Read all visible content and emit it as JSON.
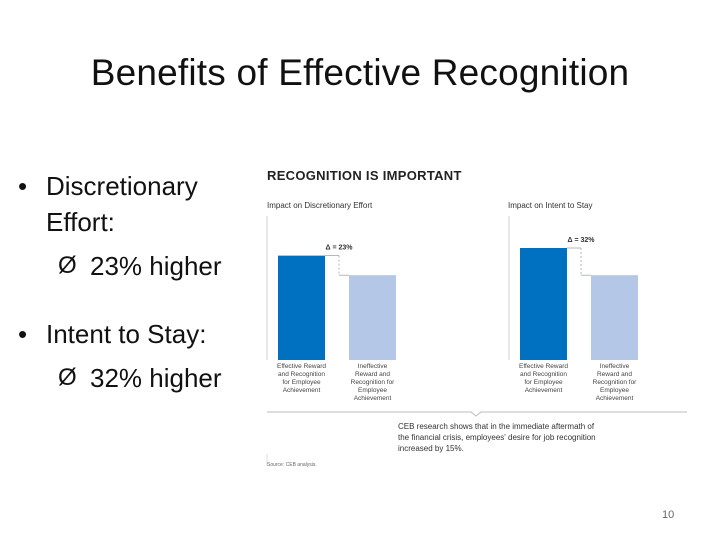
{
  "slide": {
    "title": "Benefits of Effective Recognition",
    "page_number": "10"
  },
  "bullets": [
    {
      "text": "Discretionary Effort:",
      "sub": "23% higher"
    },
    {
      "text": "Intent to Stay:",
      "sub": "32% higher"
    }
  ],
  "figure": {
    "title": "RECOGNITION IS IMPORTANT",
    "callout": "CEB research shows that in the immediate aftermath of the financial crisis, employees' desire for job recognition increased by 15%.",
    "source": "Source: CEB analysis."
  },
  "chart_data": [
    {
      "type": "bar",
      "title": "Impact on Discretionary Effort",
      "categories": [
        "Effective Reward and Recognition for Employee Achievement",
        "Ineffective Reward and Recognition for Employee Achievement"
      ],
      "values": [
        1.23,
        1.0
      ],
      "annotation": "Δ = 23%",
      "colors": [
        "#0070c0",
        "#b4c7e7"
      ]
    },
    {
      "type": "bar",
      "title": "Impact on Intent to Stay",
      "categories": [
        "Effective Reward and Recognition for Employee Achievement",
        "Ineffective Reward and Recognition for Employee Achievement"
      ],
      "values": [
        1.32,
        1.0
      ],
      "annotation": "Δ = 32%",
      "colors": [
        "#0070c0",
        "#b4c7e7"
      ]
    }
  ]
}
